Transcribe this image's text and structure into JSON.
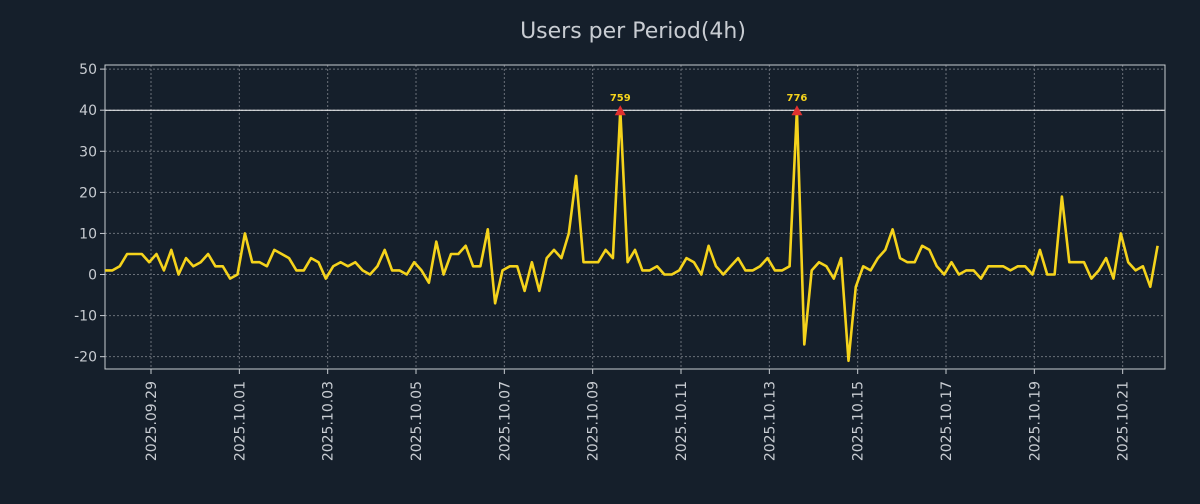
{
  "colors": {
    "background": "#151f2b",
    "line": "#f5d31c",
    "text": "#c8ccd2",
    "grid": "#6a7079",
    "peak_marker": "#e03030",
    "peak_label": "#f5d31c",
    "cap_line": "#ffffff"
  },
  "chart_data": {
    "type": "line",
    "title": "Users per Period(4h)",
    "xlabel": "",
    "ylabel": "",
    "ylim": [
      -23,
      51
    ],
    "xlim": [
      "2025-09-27 23:00",
      "2025-10-21 23:00"
    ],
    "yticks": [
      50,
      40,
      30,
      20,
      10,
      0,
      -10,
      -20
    ],
    "ytick_labels": [
      "50",
      "40",
      "30",
      "20",
      "10",
      "0",
      "-10",
      "-20"
    ],
    "xticks": [
      "2025.09.29",
      "2025.10.01",
      "2025.10.03",
      "2025.10.05",
      "2025.10.07",
      "2025.10.09",
      "2025.10.11",
      "2025.10.13",
      "2025.10.15",
      "2025.10.17",
      "2025.10.19",
      "2025.10.21"
    ],
    "grid": true,
    "cap_value": 40,
    "interval_hours": 4,
    "start": "2025-09-27 23:00",
    "series": [
      {
        "name": "Users",
        "values": [
          1,
          1,
          2,
          5,
          5,
          5,
          3,
          5,
          1,
          6,
          0,
          4,
          2,
          3,
          5,
          2,
          2,
          -1,
          0,
          10,
          3,
          3,
          2,
          6,
          5,
          4,
          1,
          1,
          4,
          3,
          -1,
          2,
          3,
          2,
          3,
          1,
          0,
          2,
          6,
          1,
          1,
          0,
          3,
          1,
          -2,
          8,
          0,
          5,
          5,
          7,
          2,
          2,
          11,
          -7,
          1,
          2,
          2,
          -4,
          3,
          -4,
          4,
          6,
          4,
          10,
          24,
          3,
          3,
          3,
          6,
          4,
          40,
          3,
          6,
          1,
          1,
          2,
          0,
          0,
          1,
          4,
          3,
          0,
          7,
          2,
          0,
          2,
          4,
          1,
          1,
          2,
          4,
          1,
          1,
          2,
          40,
          -17,
          1,
          3,
          2,
          -1,
          4,
          -21,
          -3,
          2,
          1,
          4,
          6,
          11,
          4,
          3,
          3,
          7,
          6,
          2,
          0,
          3,
          0,
          1,
          1,
          -1,
          2,
          2,
          2,
          1,
          2,
          2,
          0,
          6,
          0,
          0,
          19,
          3,
          3,
          3,
          -1,
          1,
          4,
          -1,
          10,
          3,
          1,
          2,
          -3,
          7
        ]
      }
    ],
    "peaks": [
      {
        "index": 70,
        "value": 40,
        "label": "759"
      },
      {
        "index": 94,
        "value": 40,
        "label": "776"
      }
    ]
  }
}
